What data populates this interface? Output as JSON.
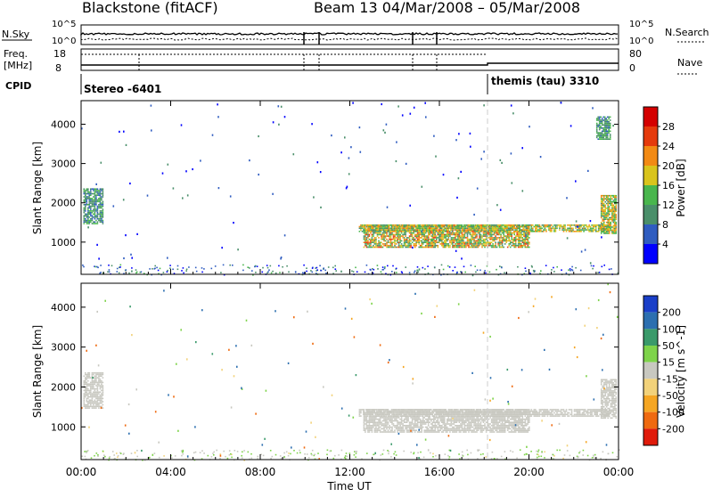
{
  "header": {
    "station": "Blackstone (fitACF)",
    "beam_date": "Beam 13  04/Mar/2008 – 05/Mar/2008"
  },
  "summary": {
    "nsky_label": "N.Sky",
    "nsky_ticks": [
      "10^5",
      "10^0"
    ],
    "nsearch_label": "N.Search",
    "nsearch_ticks": [
      "10^5",
      "10^0"
    ],
    "freq_label": "Freq.",
    "freq_unit": "[MHz]",
    "freq_ticks": [
      "18",
      "8"
    ],
    "nave_label": "Nave",
    "nave_ticks": [
      "80",
      "0"
    ],
    "cpid_label": "CPID",
    "cpid_1": "Stereo -6401",
    "cpid_2": "themis (tau) 3310"
  },
  "axes": {
    "xlabel": "Time UT",
    "ylabel": "Slant Range [km]",
    "x_ticks": [
      "00:00",
      "04:00",
      "08:00",
      "12:00",
      "16:00",
      "20:00",
      "00:00"
    ],
    "y_ticks": [
      "1000",
      "2000",
      "3000",
      "4000"
    ]
  },
  "colorbars": {
    "power_label": "Power [dB]",
    "power_ticks": [
      "4",
      "8",
      "12",
      "16",
      "20",
      "24",
      "28"
    ],
    "power_colors": [
      "#0000ff",
      "#2f5cc0",
      "#4a8f6a",
      "#49b64d",
      "#d9c41c",
      "#f28a14",
      "#e53a0c",
      "#d40000"
    ],
    "velocity_label": "Velocity [m s^-1]",
    "velocity_ticks": [
      "200",
      "100",
      "50",
      "15",
      "-15",
      "-50",
      "-100",
      "-200"
    ],
    "velocity_colors": [
      "#1a3fc8",
      "#2c6fb0",
      "#3a9a6a",
      "#7ed34a",
      "#c8c8c0",
      "#f2d27a",
      "#f5a623",
      "#ef6a10",
      "#e01b0b"
    ]
  },
  "chart_data": [
    {
      "type": "heatmap",
      "name": "Power",
      "xlabel": "Time UT",
      "ylabel": "Slant Range [km]",
      "xlim": [
        0,
        24
      ],
      "ylim": [
        180,
        4600
      ],
      "colorbar": {
        "label": "Power [dB]",
        "min": 0,
        "max": 32
      },
      "regions": [
        {
          "t": [
            0.1,
            1.0
          ],
          "r": [
            1450,
            2350
          ],
          "power": [
            6,
            14
          ]
        },
        {
          "t": [
            12.6,
            20.0
          ],
          "r": [
            850,
            1450
          ],
          "power": [
            8,
            26
          ]
        },
        {
          "t": [
            12.4,
            23.6
          ],
          "r": [
            1250,
            1450
          ],
          "power": [
            8,
            24
          ]
        },
        {
          "t": [
            23.2,
            23.9
          ],
          "r": [
            1200,
            2200
          ],
          "power": [
            10,
            24
          ]
        },
        {
          "t": [
            23.0,
            23.6
          ],
          "r": [
            3600,
            4200
          ],
          "power": [
            6,
            16
          ]
        }
      ]
    },
    {
      "type": "heatmap",
      "name": "Velocity",
      "xlabel": "Time UT",
      "ylabel": "Slant Range [km]",
      "xlim": [
        0,
        24
      ],
      "ylim": [
        180,
        4600
      ],
      "colorbar": {
        "label": "Velocity [m s^-1]",
        "min": -200,
        "max": 200
      },
      "regions": [
        {
          "t": [
            0.1,
            1.0
          ],
          "r": [
            1450,
            2350
          ],
          "velocity": [
            -15,
            15
          ]
        },
        {
          "t": [
            12.6,
            20.0
          ],
          "r": [
            850,
            1450
          ],
          "velocity": [
            -15,
            15
          ]
        },
        {
          "t": [
            12.4,
            23.6
          ],
          "r": [
            1250,
            1450
          ],
          "velocity": [
            -15,
            15
          ]
        },
        {
          "t": [
            23.2,
            23.9
          ],
          "r": [
            1200,
            2200
          ],
          "velocity": [
            -15,
            15
          ]
        }
      ]
    }
  ]
}
